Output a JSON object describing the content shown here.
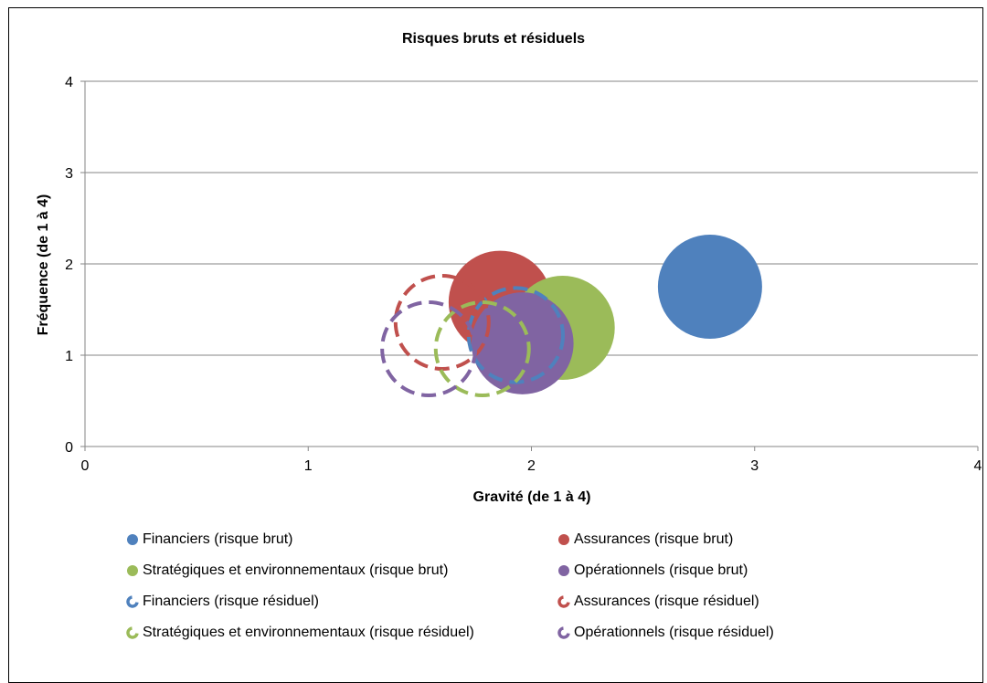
{
  "chart_data": {
    "type": "bubble",
    "title": "Risques bruts et résiduels",
    "xlabel": "Gravité (de 1 à 4)",
    "ylabel": "Fréquence (de 1 à 4)",
    "xlim": [
      0,
      4
    ],
    "ylim": [
      0,
      4
    ],
    "xticks": [
      "0",
      "1",
      "2",
      "3",
      "4"
    ],
    "yticks": [
      "0",
      "1",
      "2",
      "3",
      "4"
    ],
    "grid": "horizontal",
    "legend_position": "bottom",
    "series": [
      {
        "name": "Financiers (risque brut)",
        "x": 2.8,
        "y": 1.75,
        "size": 1.0,
        "color": "#4f81bd",
        "style": "solid"
      },
      {
        "name": "Assurances (risque brut)",
        "x": 1.86,
        "y": 1.58,
        "size": 0.98,
        "color": "#c0504d",
        "style": "solid"
      },
      {
        "name": "Stratégiques et environnementaux (risque brut)",
        "x": 2.14,
        "y": 1.3,
        "size": 1.0,
        "color": "#9bbb59",
        "style": "solid"
      },
      {
        "name": "Opérationnels (risque brut)",
        "x": 1.96,
        "y": 1.13,
        "size": 0.96,
        "color": "#8064a2",
        "style": "solid"
      },
      {
        "name": "Financiers (risque résiduel)",
        "x": 1.93,
        "y": 1.22,
        "size": 0.82,
        "color": "#4f81bd",
        "style": "dashed"
      },
      {
        "name": "Assurances (risque résiduel)",
        "x": 1.6,
        "y": 1.36,
        "size": 0.8,
        "color": "#c0504d",
        "style": "dashed"
      },
      {
        "name": "Stratégiques et environnementaux (risque résiduel)",
        "x": 1.78,
        "y": 1.07,
        "size": 0.8,
        "color": "#9bbb59",
        "style": "dashed"
      },
      {
        "name": "Opérationnels (risque résiduel)",
        "x": 1.54,
        "y": 1.07,
        "size": 0.8,
        "color": "#8064a2",
        "style": "dashed"
      }
    ]
  }
}
